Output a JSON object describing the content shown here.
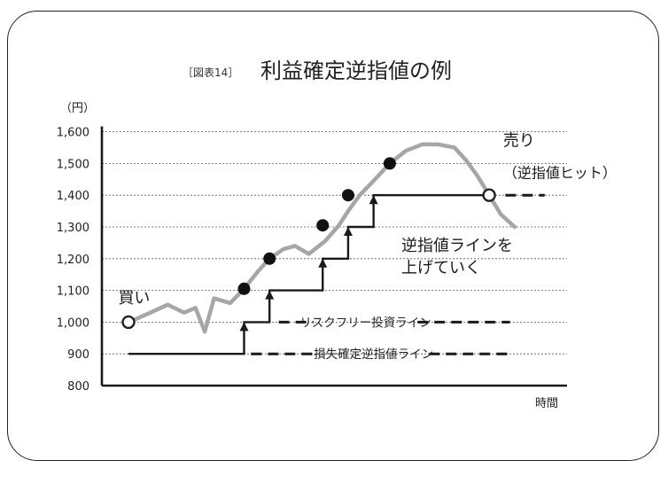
{
  "figure": {
    "label": "［図表14］",
    "title": "利益確定逆指値の例"
  },
  "chart_data": {
    "type": "line",
    "title": "利益確定逆指値の例",
    "ylabel": "（円）",
    "xlabel": "時間",
    "ylim": [
      800,
      1600
    ],
    "yticks": [
      "800",
      "900",
      "1,000",
      "1,100",
      "1,200",
      "1,300",
      "1,400",
      "1,500",
      "1,600"
    ],
    "grid": "horizontal dashed",
    "price_series": {
      "name": "",
      "color": "#a6a6a6",
      "x": [
        0,
        8,
        17,
        24,
        29,
        33,
        37,
        44,
        50,
        56,
        61,
        67,
        72,
        78,
        85,
        91,
        95,
        100,
        106,
        113,
        120,
        127,
        134,
        141,
        146,
        151,
        156,
        161,
        167
      ],
      "values": [
        1000,
        1025,
        1055,
        1030,
        1045,
        970,
        1075,
        1060,
        1105,
        1160,
        1200,
        1230,
        1240,
        1215,
        1255,
        1305,
        1350,
        1400,
        1445,
        1500,
        1540,
        1560,
        1560,
        1550,
        1510,
        1460,
        1400,
        1340,
        1300
      ]
    },
    "markers": [
      {
        "x": 0,
        "y": 1000,
        "style": "open",
        "label": "買い"
      },
      {
        "x": 50,
        "y": 1105,
        "style": "filled"
      },
      {
        "x": 61,
        "y": 1200,
        "style": "filled"
      },
      {
        "x": 84,
        "y": 1305,
        "style": "filled"
      },
      {
        "x": 95,
        "y": 1400,
        "style": "filled"
      },
      {
        "x": 113,
        "y": 1500,
        "style": "filled"
      },
      {
        "x": 156,
        "y": 1400,
        "style": "open"
      }
    ],
    "stop_line": {
      "color": "#1a1a1a",
      "x": [
        0,
        50,
        50,
        61,
        61,
        84,
        84,
        95,
        95,
        106,
        106,
        156
      ],
      "values": [
        900,
        900,
        1000,
        1000,
        1100,
        1100,
        1200,
        1200,
        1300,
        1300,
        1400,
        1400
      ]
    },
    "arrows": [
      {
        "x": 50,
        "from": 900,
        "to": 1000
      },
      {
        "x": 61,
        "from": 1000,
        "to": 1100
      },
      {
        "x": 84,
        "from": 1100,
        "to": 1200
      },
      {
        "x": 95,
        "from": 1200,
        "to": 1300
      },
      {
        "x": 106,
        "from": 1300,
        "to": 1400
      }
    ],
    "dashed_levels": [
      {
        "y": 1000,
        "segments": [
          [
            65,
            80
          ],
          [
            125,
            165
          ]
        ],
        "label": "リスクフリー投資ライン"
      },
      {
        "y": 900,
        "segments": [
          [
            53,
            82
          ],
          [
            130,
            165
          ]
        ],
        "label": "損失確定逆指値ライン"
      },
      {
        "y": 1400,
        "segments": [
          [
            163,
            180
          ]
        ],
        "label": ""
      }
    ],
    "annotations": [
      {
        "text": "買い",
        "x": 4,
        "y": 1060
      },
      {
        "text": "売り",
        "x": 162,
        "y": 1555
      },
      {
        "text": "（逆指値ヒット）",
        "x": 162,
        "y": 1455
      },
      {
        "text": "逆指値ラインを",
        "x": 118,
        "y": 1225
      },
      {
        "text": "上げていく",
        "x": 118,
        "y": 1155
      }
    ]
  }
}
